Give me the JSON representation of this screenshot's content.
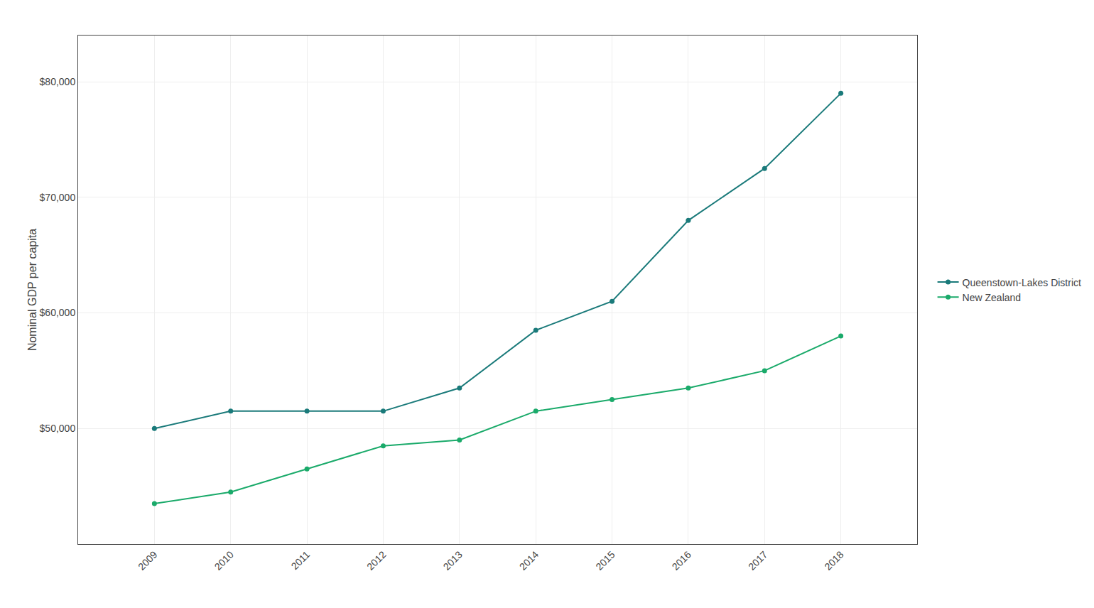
{
  "chart_data": {
    "type": "line",
    "y_label": "Nominal GDP per capita",
    "x": [
      2009,
      2010,
      2011,
      2012,
      2013,
      2014,
      2015,
      2016,
      2017,
      2018
    ],
    "series": [
      {
        "name": "Queenstown-Lakes District",
        "color": "#1a7a7a",
        "marker": "circle",
        "line_style": "solid",
        "values": [
          50000,
          51500,
          51500,
          51500,
          53500,
          58500,
          61000,
          68000,
          72500,
          79000
        ]
      },
      {
        "name": "New Zealand",
        "color": "#1aaa6a",
        "marker": "circle",
        "line_style": "solid",
        "values": [
          43500,
          44500,
          46500,
          48500,
          49000,
          51500,
          52500,
          53500,
          55000,
          58000
        ]
      }
    ],
    "xlim": [
      2008,
      2019
    ],
    "xticks": [
      2009,
      2010,
      2011,
      2012,
      2013,
      2014,
      2015,
      2016,
      2017,
      2018
    ],
    "ylim": [
      40000,
      84000
    ],
    "yticks": [
      {
        "value": 50000,
        "label": "$50,000"
      },
      {
        "value": 60000,
        "label": "$60,000"
      },
      {
        "value": 70000,
        "label": "$70,000"
      },
      {
        "value": 80000,
        "label": "$80,000"
      }
    ],
    "grid": true,
    "legend": "right"
  }
}
